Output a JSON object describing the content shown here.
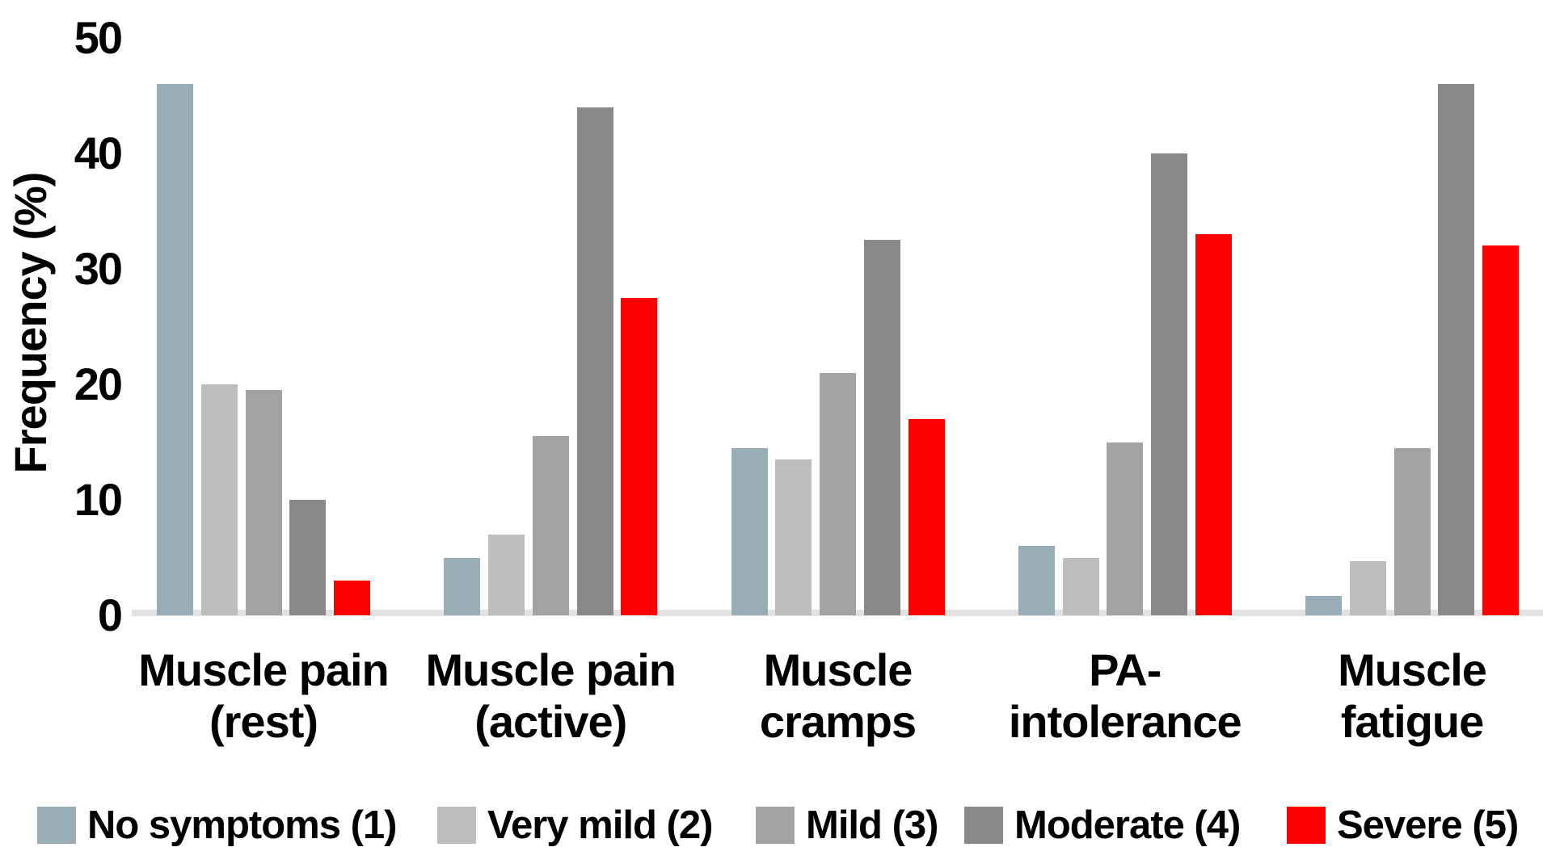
{
  "chart_data": {
    "type": "bar",
    "title": "",
    "xlabel": "",
    "ylabel": "Frequency (%)",
    "ylim": [
      0,
      50
    ],
    "yticks": [
      0,
      10,
      20,
      30,
      40,
      50
    ],
    "grid": false,
    "legend_position": "bottom",
    "categories": [
      "Muscle pain\n(rest)",
      "Muscle pain\n(active)",
      "Muscle\ncramps",
      "PA-\nintolerance",
      "Muscle\nfatigue"
    ],
    "series": [
      {
        "name": "No symptoms (1)",
        "color": "#98ADB7",
        "values": [
          46,
          5,
          14.5,
          6,
          1.7
        ]
      },
      {
        "name": "Very mild (2)",
        "color": "#BDBDBD",
        "values": [
          20,
          7,
          13.5,
          5,
          4.7
        ]
      },
      {
        "name": "Mild (3)",
        "color": "#A3A3A3",
        "values": [
          19.5,
          15.5,
          21,
          15,
          14.5
        ]
      },
      {
        "name": "Moderate (4)",
        "color": "#898989",
        "values": [
          10,
          44,
          32.5,
          40,
          46
        ]
      },
      {
        "name": "Severe (5)",
        "color": "#FF0000",
        "values": [
          3,
          27.5,
          17,
          33,
          32
        ]
      }
    ],
    "axis_line_color": "#e2e2e2",
    "text_color": "#000000"
  }
}
